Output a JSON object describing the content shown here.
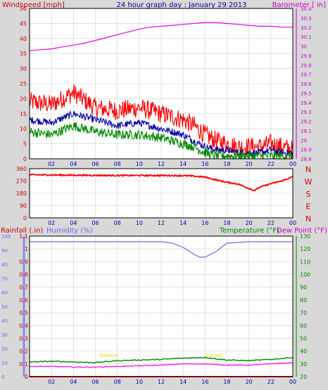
{
  "header": {
    "left_label": "Windspeed [mph]",
    "center_title": "24 hour graph day : January 29 2013",
    "right_label": "Barometer [ in]"
  },
  "colors": {
    "background": "#d8d8d8",
    "plot_background": "#ffffff",
    "grid": "#d0d0d0",
    "wind_gust": "#ff0000",
    "wind_avg": "#0000aa",
    "wind_low": "#008800",
    "barometer": "#ee00ee",
    "direction": "#ff0000",
    "rain": "#ff0000",
    "humidity": "#6a6aee",
    "temperature": "#008800",
    "dewpoint": "#ee00ee",
    "sun_marker": "#eeee00"
  },
  "x_ticks": [
    "02",
    "04",
    "06",
    "08",
    "10",
    "12",
    "14",
    "16",
    "18",
    "20",
    "22",
    "00"
  ],
  "panel_wind": {
    "left_ticks": [
      "50",
      "45",
      "40",
      "35",
      "30",
      "25",
      "20",
      "15",
      "10",
      "5",
      "0"
    ],
    "right_ticks": [
      "30.4",
      "30.3",
      "30.2",
      "30.1",
      "30",
      "29.9",
      "29.8",
      "29.7",
      "29.6",
      "29.5",
      "29.4",
      "29.3",
      "29.2",
      "29.1",
      "29",
      "28.9",
      "28.8"
    ]
  },
  "panel_dir": {
    "left_ticks": [
      "360",
      "270",
      "180",
      "90",
      "0"
    ],
    "right_labels": [
      "N",
      "W",
      "S",
      "E",
      "N"
    ]
  },
  "panel_bottom": {
    "rain_label": "Rainfall (.in)",
    "humidity_label": "Humidity (%)",
    "temp_label": "Temperature (°F)",
    "dew_label": "Dew Point (°F)",
    "left_ticks_rain": [
      "1.1",
      "1",
      "0.9",
      "0.8",
      "0.7",
      "0.6",
      "0.5",
      "0.4",
      "0.3",
      "0.2",
      "0.1",
      "0"
    ],
    "left_ticks_hum": [
      "100",
      "90",
      "80",
      "70",
      "60",
      "50",
      "40",
      "30",
      "20",
      "10",
      "0"
    ],
    "right_ticks": [
      "130",
      "120",
      "110",
      "100",
      "90",
      "80",
      "70",
      "60",
      "50",
      "40",
      "30",
      "20"
    ],
    "sunrise_label": "Sunrise",
    "sunset_label": "Sunset"
  },
  "chart_data": [
    {
      "type": "line",
      "title": "24 hour graph day : January 29 2013",
      "x_unit": "hour",
      "x_range": [
        0,
        24
      ],
      "xtick_labels": [
        "02",
        "04",
        "06",
        "08",
        "10",
        "12",
        "14",
        "16",
        "18",
        "20",
        "22",
        "00"
      ],
      "y_left": {
        "label": "Windspeed [mph]",
        "range": [
          0,
          50
        ]
      },
      "y_right": {
        "label": "Barometer [ in]",
        "range": [
          28.8,
          30.4
        ]
      },
      "series": [
        {
          "name": "Wind gust",
          "axis": "left",
          "x": [
            0,
            2,
            4,
            6,
            8,
            10,
            12,
            14,
            15,
            16,
            17,
            18,
            19,
            20,
            21,
            22,
            23,
            24
          ],
          "y": [
            19,
            18,
            22,
            17,
            16,
            17,
            15,
            13,
            11,
            8,
            6,
            5,
            4,
            4,
            4,
            5,
            4,
            3
          ]
        },
        {
          "name": "Wind speed",
          "axis": "left",
          "x": [
            0,
            2,
            4,
            6,
            8,
            10,
            12,
            14,
            15,
            16,
            17,
            18,
            19,
            20,
            21,
            22,
            23,
            24
          ],
          "y": [
            13,
            12,
            15,
            13,
            11,
            12,
            10,
            8,
            6,
            4,
            3,
            3,
            2,
            2,
            2,
            3,
            2,
            2
          ]
        },
        {
          "name": "Wind low",
          "axis": "left",
          "x": [
            0,
            2,
            4,
            6,
            8,
            10,
            12,
            14,
            15,
            16,
            17,
            18,
            19,
            20,
            21,
            22,
            23,
            24
          ],
          "y": [
            9,
            8,
            11,
            9,
            8,
            8,
            7,
            5,
            4,
            2,
            1,
            1,
            1,
            1,
            1,
            1,
            1,
            1
          ]
        },
        {
          "name": "Barometer",
          "axis": "right",
          "x": [
            0,
            1,
            2,
            3,
            4,
            5,
            6,
            7,
            8,
            9,
            10,
            11,
            12,
            13,
            14,
            15,
            16,
            17,
            18,
            19,
            20,
            21,
            22,
            23,
            24
          ],
          "y": [
            29.95,
            29.96,
            29.97,
            29.99,
            30.01,
            30.03,
            30.06,
            30.09,
            30.12,
            30.15,
            30.18,
            30.2,
            30.21,
            30.22,
            30.23,
            30.24,
            30.25,
            30.25,
            30.24,
            30.23,
            30.22,
            30.21,
            30.21,
            30.2,
            30.2
          ]
        }
      ]
    },
    {
      "type": "line",
      "x_range": [
        0,
        24
      ],
      "y_left": {
        "label": "",
        "range": [
          0,
          360
        ]
      },
      "series": [
        {
          "name": "Wind direction",
          "x": [
            0,
            4,
            8,
            12,
            14,
            15,
            16,
            17,
            18,
            19,
            20,
            20.5,
            21,
            22,
            23,
            24
          ],
          "y": [
            315,
            312,
            310,
            310,
            309,
            305,
            298,
            278,
            260,
            248,
            215,
            200,
            225,
            250,
            270,
            300
          ]
        }
      ]
    },
    {
      "type": "line",
      "x_range": [
        0,
        24
      ],
      "y_left_rain": {
        "label": "Rainfall (.in)",
        "range": [
          0,
          1.1
        ]
      },
      "y_left_humidity": {
        "label": "Humidity (%)",
        "range": [
          0,
          100
        ]
      },
      "y_right": {
        "label": "Temperature (°F) / Dew Point (°F)",
        "range": [
          20,
          130
        ]
      },
      "annotations": [
        {
          "text": "Sunrise",
          "x": 7.2
        },
        {
          "text": "Sunset",
          "x": 16.8
        }
      ],
      "series": [
        {
          "name": "Rainfall",
          "axis": "rain",
          "x": [
            0,
            24
          ],
          "y": [
            0,
            0
          ]
        },
        {
          "name": "Humidity",
          "axis": "humidity",
          "x": [
            0,
            2,
            4,
            6,
            8,
            10,
            12,
            13,
            14,
            15,
            15.5,
            16,
            17,
            18,
            20,
            22,
            24
          ],
          "y": [
            96,
            96,
            96,
            96,
            96,
            96,
            96,
            95,
            92,
            87,
            85,
            85,
            89,
            95,
            96,
            96,
            96
          ]
        },
        {
          "name": "Temperature",
          "axis": "right",
          "x": [
            0,
            2,
            4,
            6,
            8,
            10,
            12,
            14,
            16,
            18,
            20,
            22,
            24
          ],
          "y": [
            31.5,
            32,
            31.5,
            31,
            32.5,
            33,
            33.5,
            34.5,
            35,
            33,
            32.5,
            33.5,
            35
          ]
        },
        {
          "name": "Dew Point",
          "axis": "right",
          "x": [
            0,
            2,
            4,
            6,
            8,
            10,
            12,
            14,
            16,
            18,
            20,
            22,
            24
          ],
          "y": [
            28,
            28,
            27.5,
            27.5,
            28,
            28.5,
            29,
            30,
            30,
            29,
            29,
            30,
            31
          ]
        }
      ]
    }
  ]
}
